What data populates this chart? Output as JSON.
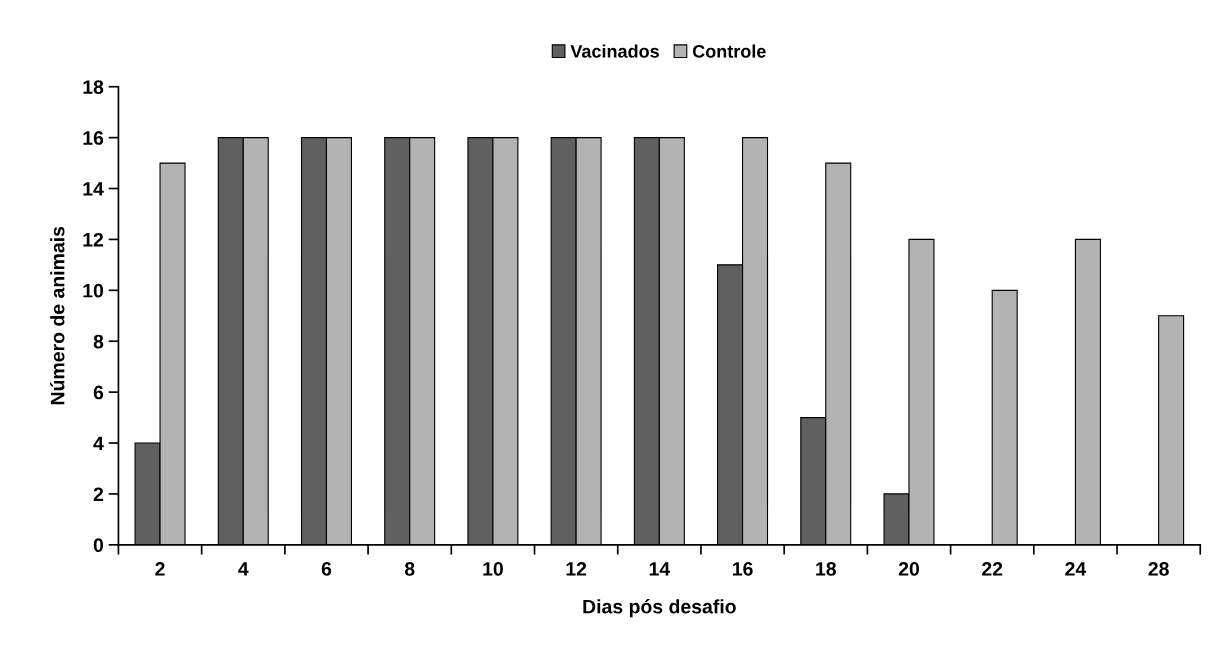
{
  "chart_data": {
    "type": "bar",
    "xlabel": "Dias pós desafio",
    "ylabel": "Número de animais",
    "categories": [
      "2",
      "4",
      "6",
      "8",
      "10",
      "12",
      "14",
      "16",
      "18",
      "20",
      "22",
      "24",
      "28"
    ],
    "series": [
      {
        "name": "Vacinados",
        "color": "#606060",
        "values": [
          4,
          16,
          16,
          16,
          16,
          16,
          16,
          11,
          5,
          2,
          null,
          null,
          null
        ]
      },
      {
        "name": "Controle",
        "color": "#b3b3b3",
        "values": [
          15,
          16,
          16,
          16,
          16,
          16,
          16,
          16,
          15,
          12,
          10,
          12,
          9
        ]
      }
    ],
    "ylim": [
      0,
      18
    ],
    "yticks": [
      0,
      2,
      4,
      6,
      8,
      10,
      12,
      14,
      16,
      18
    ],
    "grid": false,
    "legend": "top"
  }
}
